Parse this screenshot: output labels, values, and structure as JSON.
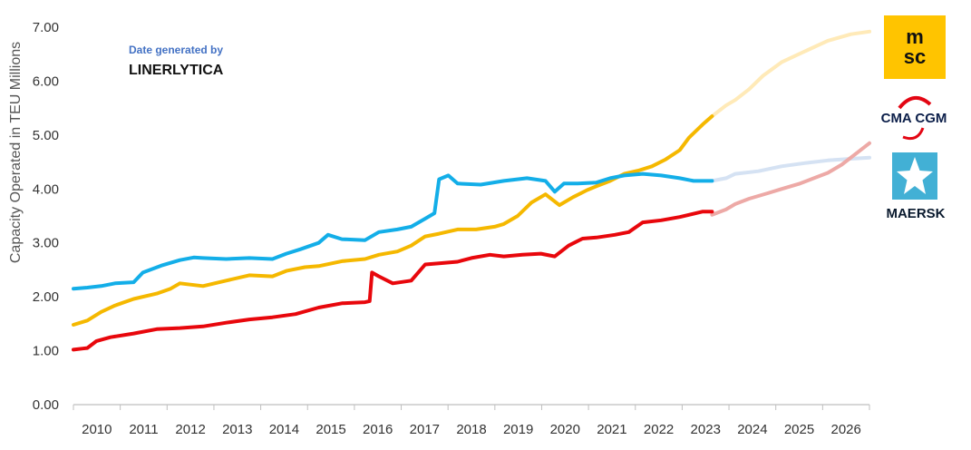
{
  "colors": {
    "msc": "#f5b800",
    "msc_forecast": "#ffeab8",
    "maersk": "#13aee8",
    "maersk_forecast": "#d5e2f3",
    "cma": "#e8070c",
    "cma_forecast": "#eda9a6",
    "axis": "#bfbfbf",
    "maersk_logo_bg": "#42b0d5"
  },
  "source": {
    "line1": "Date generated by",
    "line2": "LINERLYTICA"
  },
  "logos": {
    "msc": "msc",
    "cma": "CMA CGM",
    "maersk": "MAERSK"
  },
  "chart_data": {
    "type": "line",
    "xlabel": "",
    "ylabel": "Capacity Operated in TEU Millions",
    "ylim": [
      0,
      7
    ],
    "xlim": [
      2009.7,
      2026.9
    ],
    "y_ticks": [
      "0.00",
      "1.00",
      "2.00",
      "3.00",
      "4.00",
      "5.00",
      "6.00",
      "7.00"
    ],
    "x_ticks": [
      "2010",
      "2011",
      "2012",
      "2013",
      "2014",
      "2015",
      "2016",
      "2017",
      "2018",
      "2019",
      "2020",
      "2021",
      "2022",
      "2023",
      "2024",
      "2025",
      "2026"
    ],
    "grid": false,
    "legend": "logos at right",
    "series": [
      {
        "key": "msc",
        "points": [
          [
            2009.7,
            1.48
          ],
          [
            2010.0,
            1.56
          ],
          [
            2010.3,
            1.72
          ],
          [
            2010.6,
            1.84
          ],
          [
            2011.0,
            1.96
          ],
          [
            2011.5,
            2.06
          ],
          [
            2011.8,
            2.15
          ],
          [
            2012.0,
            2.25
          ],
          [
            2012.5,
            2.2
          ],
          [
            2013.0,
            2.3
          ],
          [
            2013.5,
            2.4
          ],
          [
            2014.0,
            2.38
          ],
          [
            2014.3,
            2.48
          ],
          [
            2014.7,
            2.55
          ],
          [
            2015.0,
            2.57
          ],
          [
            2015.5,
            2.66
          ],
          [
            2016.0,
            2.7
          ],
          [
            2016.3,
            2.78
          ],
          [
            2016.7,
            2.84
          ],
          [
            2017.0,
            2.95
          ],
          [
            2017.3,
            3.12
          ],
          [
            2017.6,
            3.17
          ],
          [
            2018.0,
            3.25
          ],
          [
            2018.4,
            3.25
          ],
          [
            2018.8,
            3.3
          ],
          [
            2019.0,
            3.35
          ],
          [
            2019.3,
            3.5
          ],
          [
            2019.6,
            3.75
          ],
          [
            2019.9,
            3.9
          ],
          [
            2020.2,
            3.7
          ],
          [
            2020.5,
            3.85
          ],
          [
            2020.8,
            3.98
          ],
          [
            2021.0,
            4.05
          ],
          [
            2021.3,
            4.15
          ],
          [
            2021.6,
            4.28
          ],
          [
            2021.9,
            4.34
          ],
          [
            2022.2,
            4.42
          ],
          [
            2022.5,
            4.55
          ],
          [
            2022.8,
            4.72
          ],
          [
            2023.0,
            4.95
          ],
          [
            2023.3,
            5.2
          ],
          [
            2023.5,
            5.35
          ]
        ]
      },
      {
        "key": "msc_forecast",
        "points": [
          [
            2023.5,
            5.35
          ],
          [
            2023.8,
            5.55
          ],
          [
            2024.0,
            5.65
          ],
          [
            2024.3,
            5.85
          ],
          [
            2024.6,
            6.1
          ],
          [
            2025.0,
            6.35
          ],
          [
            2025.5,
            6.55
          ],
          [
            2026.0,
            6.75
          ],
          [
            2026.5,
            6.87
          ],
          [
            2026.9,
            6.92
          ]
        ]
      },
      {
        "key": "maersk",
        "points": [
          [
            2009.7,
            2.15
          ],
          [
            2010.0,
            2.17
          ],
          [
            2010.3,
            2.2
          ],
          [
            2010.6,
            2.25
          ],
          [
            2011.0,
            2.27
          ],
          [
            2011.2,
            2.45
          ],
          [
            2011.6,
            2.58
          ],
          [
            2012.0,
            2.68
          ],
          [
            2012.3,
            2.73
          ],
          [
            2012.5,
            2.72
          ],
          [
            2013.0,
            2.7
          ],
          [
            2013.5,
            2.72
          ],
          [
            2014.0,
            2.7
          ],
          [
            2014.3,
            2.8
          ],
          [
            2014.6,
            2.88
          ],
          [
            2015.0,
            3.0
          ],
          [
            2015.2,
            3.15
          ],
          [
            2015.5,
            3.07
          ],
          [
            2016.0,
            3.05
          ],
          [
            2016.3,
            3.2
          ],
          [
            2016.7,
            3.25
          ],
          [
            2017.0,
            3.3
          ],
          [
            2017.3,
            3.45
          ],
          [
            2017.5,
            3.55
          ],
          [
            2017.6,
            4.18
          ],
          [
            2017.8,
            4.25
          ],
          [
            2018.0,
            4.1
          ],
          [
            2018.5,
            4.08
          ],
          [
            2019.0,
            4.15
          ],
          [
            2019.5,
            4.2
          ],
          [
            2019.9,
            4.15
          ],
          [
            2020.1,
            3.95
          ],
          [
            2020.3,
            4.1
          ],
          [
            2020.6,
            4.1
          ],
          [
            2021.0,
            4.12
          ],
          [
            2021.3,
            4.2
          ],
          [
            2021.6,
            4.25
          ],
          [
            2022.0,
            4.28
          ],
          [
            2022.4,
            4.25
          ],
          [
            2022.8,
            4.2
          ],
          [
            2023.1,
            4.15
          ],
          [
            2023.5,
            4.15
          ]
        ]
      },
      {
        "key": "maersk_forecast",
        "points": [
          [
            2023.5,
            4.15
          ],
          [
            2023.8,
            4.2
          ],
          [
            2024.0,
            4.28
          ],
          [
            2024.5,
            4.33
          ],
          [
            2025.0,
            4.42
          ],
          [
            2025.5,
            4.48
          ],
          [
            2026.0,
            4.53
          ],
          [
            2026.5,
            4.56
          ],
          [
            2026.9,
            4.58
          ]
        ]
      },
      {
        "key": "cma",
        "points": [
          [
            2009.7,
            1.02
          ],
          [
            2009.9,
            1.04
          ],
          [
            2010.0,
            1.05
          ],
          [
            2010.2,
            1.18
          ],
          [
            2010.5,
            1.25
          ],
          [
            2011.0,
            1.32
          ],
          [
            2011.5,
            1.4
          ],
          [
            2012.0,
            1.42
          ],
          [
            2012.5,
            1.45
          ],
          [
            2013.0,
            1.52
          ],
          [
            2013.5,
            1.58
          ],
          [
            2014.0,
            1.62
          ],
          [
            2014.5,
            1.68
          ],
          [
            2015.0,
            1.8
          ],
          [
            2015.5,
            1.88
          ],
          [
            2016.0,
            1.9
          ],
          [
            2016.1,
            1.92
          ],
          [
            2016.15,
            2.45
          ],
          [
            2016.3,
            2.38
          ],
          [
            2016.6,
            2.25
          ],
          [
            2017.0,
            2.3
          ],
          [
            2017.3,
            2.6
          ],
          [
            2017.6,
            2.62
          ],
          [
            2018.0,
            2.65
          ],
          [
            2018.3,
            2.72
          ],
          [
            2018.7,
            2.78
          ],
          [
            2019.0,
            2.75
          ],
          [
            2019.4,
            2.78
          ],
          [
            2019.8,
            2.8
          ],
          [
            2020.1,
            2.75
          ],
          [
            2020.4,
            2.95
          ],
          [
            2020.7,
            3.08
          ],
          [
            2021.0,
            3.1
          ],
          [
            2021.4,
            3.15
          ],
          [
            2021.7,
            3.2
          ],
          [
            2022.0,
            3.38
          ],
          [
            2022.4,
            3.42
          ],
          [
            2022.8,
            3.48
          ],
          [
            2023.0,
            3.52
          ],
          [
            2023.3,
            3.58
          ],
          [
            2023.5,
            3.58
          ]
        ]
      },
      {
        "key": "cma_forecast",
        "points": [
          [
            2023.5,
            3.52
          ],
          [
            2023.8,
            3.62
          ],
          [
            2024.0,
            3.72
          ],
          [
            2024.3,
            3.82
          ],
          [
            2024.7,
            3.92
          ],
          [
            2025.0,
            4.0
          ],
          [
            2025.4,
            4.1
          ],
          [
            2025.7,
            4.2
          ],
          [
            2026.0,
            4.3
          ],
          [
            2026.3,
            4.45
          ],
          [
            2026.6,
            4.65
          ],
          [
            2026.9,
            4.85
          ]
        ]
      }
    ]
  }
}
